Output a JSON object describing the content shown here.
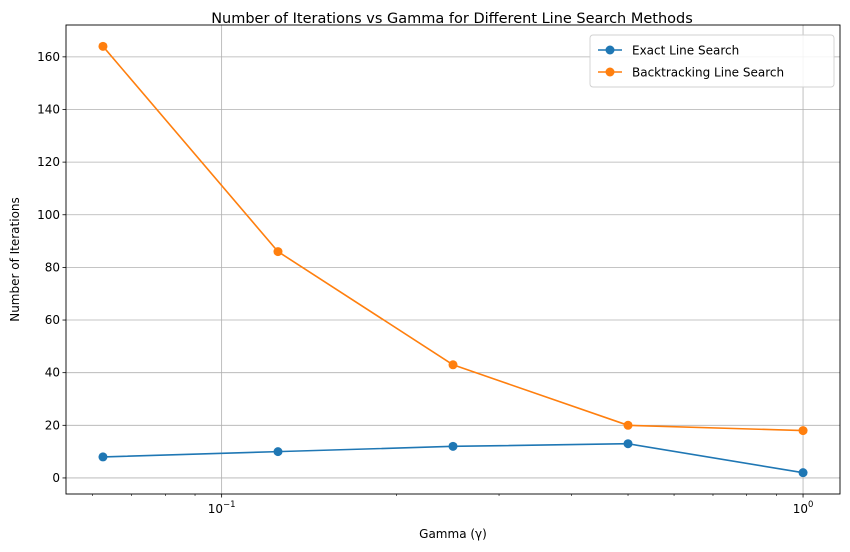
{
  "chart_data": {
    "type": "line",
    "title": "Number of Iterations vs Gamma for Different Line Search Methods",
    "xlabel": "Gamma (γ)",
    "ylabel": "Number of Iterations",
    "xscale": "log",
    "xlim": [
      0.05399,
      1.1576
    ],
    "ylim": [
      -6.1,
      172.1
    ],
    "x": [
      0.0625,
      0.125,
      0.25,
      0.5,
      1.0
    ],
    "series": [
      {
        "name": "Exact Line Search",
        "color": "#1f77b4",
        "values": [
          8,
          10,
          12,
          13,
          2
        ]
      },
      {
        "name": "Backtracking Line Search",
        "color": "#ff7f0e",
        "values": [
          164,
          86,
          43,
          20,
          18
        ]
      }
    ],
    "yticks": [
      0,
      20,
      40,
      60,
      80,
      100,
      120,
      140,
      160
    ],
    "xticks_major": [
      {
        "value": 0.1,
        "base": "10",
        "exp": "−1"
      },
      {
        "value": 1.0,
        "base": "10",
        "exp": "0"
      }
    ],
    "grid": true,
    "legend_position": "top-right"
  }
}
